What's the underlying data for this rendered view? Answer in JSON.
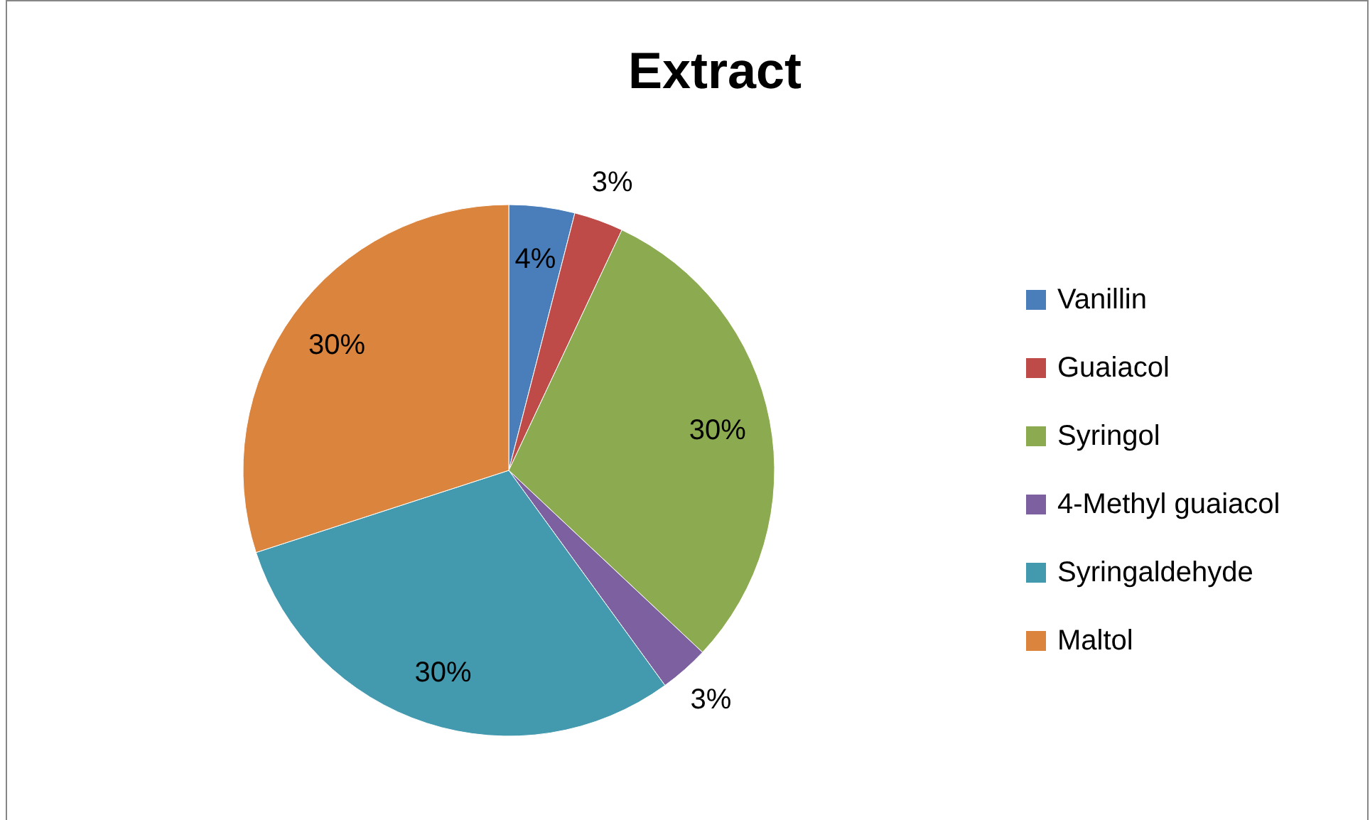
{
  "chart_data": {
    "type": "pie",
    "title": "Extract",
    "categories": [
      "Vanillin",
      "Guaiacol",
      "Syringol",
      "4-Methyl guaiacol",
      "Syringaldehyde",
      "Maltol"
    ],
    "values": [
      4,
      3,
      30,
      3,
      30,
      30
    ],
    "colors": [
      "#4a7ebb",
      "#be4b48",
      "#8cab50",
      "#7d60a0",
      "#439aaf",
      "#db843d"
    ],
    "value_labels": [
      "4%",
      "3%",
      "30%",
      "3%",
      "30%",
      "30%"
    ],
    "legend": "right"
  }
}
